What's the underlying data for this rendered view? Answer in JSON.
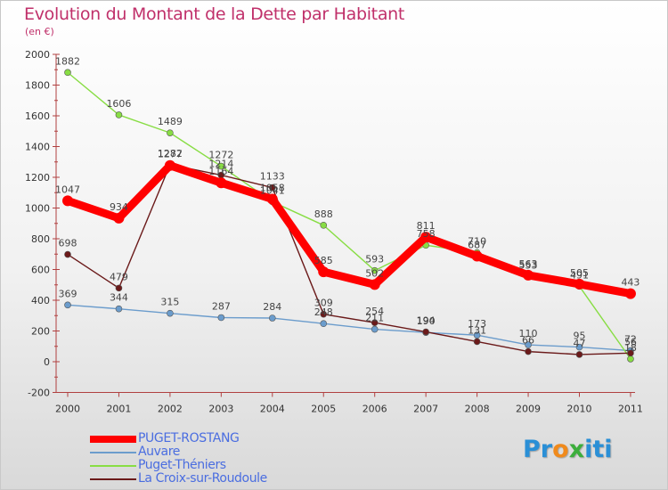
{
  "header": {
    "title": "Evolution du Montant de la Dette par Habitant",
    "subtitle": "(en €)"
  },
  "logo": {
    "text": "Proxiti",
    "letters": [
      {
        "ch": "P",
        "color": "#2a8fd6"
      },
      {
        "ch": "r",
        "color": "#2a8fd6"
      },
      {
        "ch": "o",
        "color": "#f08a1c"
      },
      {
        "ch": "x",
        "color": "#3cae3c"
      },
      {
        "ch": "i",
        "color": "#2a8fd6"
      },
      {
        "ch": "t",
        "color": "#2a8fd6"
      },
      {
        "ch": "i",
        "color": "#2a8fd6"
      }
    ]
  },
  "chart_data": {
    "type": "line",
    "title": "Evolution du Montant de la Dette par Habitant",
    "ylabel": "(en €)",
    "xlabel": "",
    "ylim": [
      -200,
      2000
    ],
    "yticks": [
      -200,
      0,
      200,
      400,
      600,
      800,
      1000,
      1200,
      1400,
      1600,
      1800,
      2000
    ],
    "grid": false,
    "legend_position": "bottom-left",
    "x": [
      "2000",
      "2001",
      "2002",
      "2003",
      "2004",
      "2005",
      "2006",
      "2007",
      "2008",
      "2009",
      "2010",
      "2011"
    ],
    "series": [
      {
        "name": "PUGET-ROSTANG",
        "color": "#ff0000",
        "values": [
          1047,
          934,
          1277,
          1164,
          1058,
          585,
          502,
          811,
          687,
          563,
          505,
          443
        ],
        "labels": [
          "1047",
          "934",
          "1277",
          "1164",
          "1058",
          "585",
          "502",
          "811",
          "687",
          "563",
          "505",
          "443"
        ]
      },
      {
        "name": "Auvare",
        "color": "#6b9ccc",
        "values": [
          369,
          344,
          315,
          287,
          284,
          248,
          211,
          190,
          173,
          110,
          95,
          72
        ],
        "labels": [
          "369",
          "344",
          "315",
          "287",
          "284",
          "248",
          "211",
          "190",
          "173",
          "110",
          "95",
          "72"
        ]
      },
      {
        "name": "Puget-Théniers",
        "color": "#88dd44",
        "values": [
          1882,
          1606,
          1489,
          1272,
          1041,
          888,
          593,
          758,
          710,
          553,
          491,
          18
        ],
        "labels": [
          "1882",
          "1606",
          "1489",
          "1272",
          "1041",
          "888",
          "593",
          "758",
          "710",
          "553",
          "491",
          "18"
        ]
      },
      {
        "name": "La Croix-sur-Roudoule",
        "color": "#6b1a1a",
        "values": [
          698,
          479,
          1282,
          1214,
          1133,
          309,
          254,
          194,
          131,
          66,
          47,
          56
        ],
        "labels": [
          "698",
          "479",
          "1282",
          "1214",
          "1133",
          "309",
          "254",
          "194",
          "131",
          "66",
          "47",
          "56"
        ]
      }
    ]
  }
}
